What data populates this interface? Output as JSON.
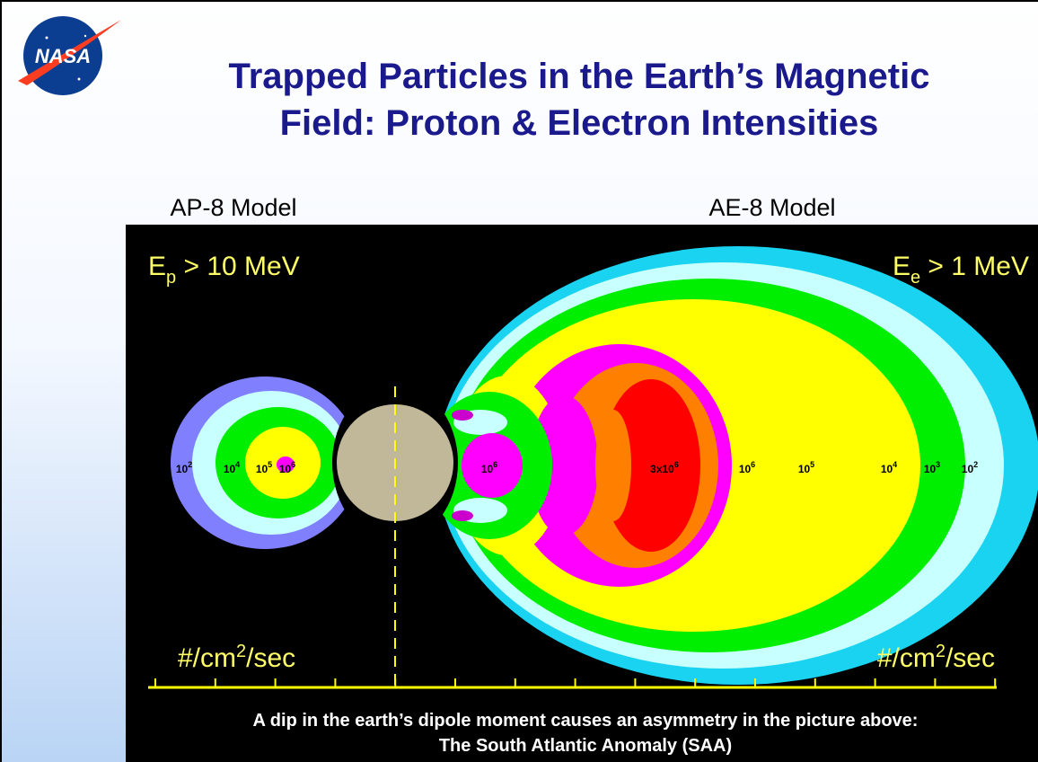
{
  "header": {
    "logo": "NASA",
    "title_lines": [
      "Trapped Particles in the Earth’s Magnetic",
      "Field: Proton & Electron Intensities"
    ]
  },
  "panels": [
    {
      "model": "AP-8 Model",
      "energy": {
        "symbol": "E",
        "sub": "p",
        "rest": " > 10 MeV"
      },
      "units": {
        "before": "#/cm",
        "sup": "2",
        "after": "/sec"
      },
      "contours": [
        {
          "base": "10",
          "exp": "2"
        },
        {
          "base": "10",
          "exp": "4"
        },
        {
          "base": "10",
          "exp": "5"
        },
        {
          "base": "10",
          "exp": "6"
        }
      ]
    },
    {
      "model": "AE-8 Model",
      "energy": {
        "symbol": "E",
        "sub": "e",
        "rest": " > 1 MeV"
      },
      "units": {
        "before": "#/cm",
        "sup": "2",
        "after": "/sec"
      },
      "contours": [
        {
          "base": "10",
          "exp": "6"
        },
        {
          "base": "3x10",
          "exp": "6"
        },
        {
          "base": "10",
          "exp": "6"
        },
        {
          "base": "10",
          "exp": "5"
        },
        {
          "base": "10",
          "exp": "4"
        },
        {
          "base": "10",
          "exp": "3"
        },
        {
          "base": "10",
          "exp": "2"
        }
      ]
    }
  ],
  "caption_lines": [
    "A dip in the earth’s dipole moment causes an asymmetry in the picture above:",
    "The South Atlantic Anomaly (SAA)"
  ]
}
